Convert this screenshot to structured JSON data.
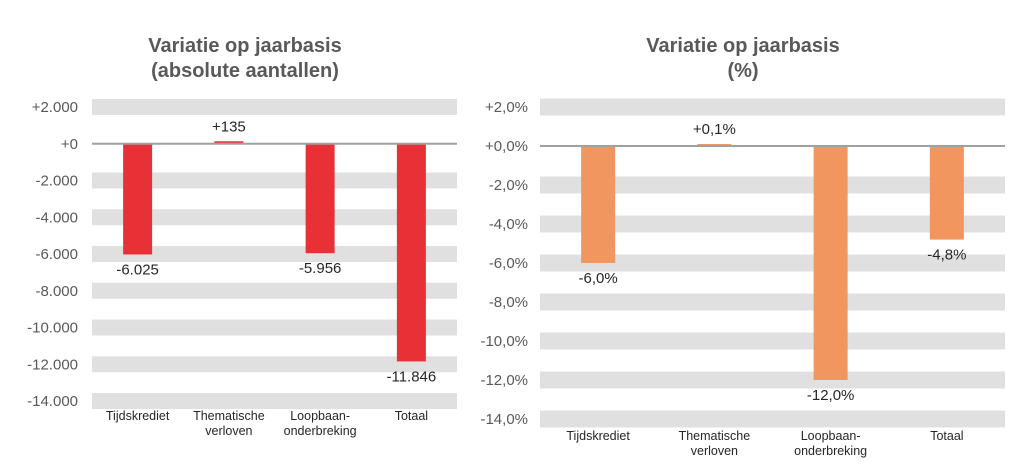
{
  "chart_data": [
    {
      "type": "bar",
      "title": [
        "Variatie op jaarbasis",
        "(absolute aantallen)"
      ],
      "categories": [
        [
          "Tijdskrediet"
        ],
        [
          "Thematische",
          "verloven"
        ],
        [
          "Loopbaan-",
          "onderbreking"
        ],
        [
          "Totaal"
        ]
      ],
      "values": [
        -6025,
        135,
        -5956,
        -11846
      ],
      "data_labels": [
        "-6.025",
        "+135",
        "-5.956",
        "-11.846"
      ],
      "ylim": [
        -14000,
        2000
      ],
      "yticks": [
        2000,
        0,
        -2000,
        -4000,
        -6000,
        -8000,
        -10000,
        -12000,
        -14000
      ],
      "ytick_labels": [
        "+2.000",
        "+0",
        "-2.000",
        "-4.000",
        "-6.000",
        "-8.000",
        "-10.000",
        "-12.000",
        "-14.000"
      ],
      "grid": "alternating bands",
      "color": "#E83137"
    },
    {
      "type": "bar",
      "title": [
        "Variatie op jaarbasis",
        "(%)"
      ],
      "categories": [
        [
          "Tijdskrediet"
        ],
        [
          "Thematische",
          "verloven"
        ],
        [
          "Loopbaan-",
          "onderbreking"
        ],
        [
          "Totaal"
        ]
      ],
      "values": [
        -6.0,
        0.1,
        -12.0,
        -4.8
      ],
      "data_labels": [
        "-6,0%",
        "+0,1%",
        "-12,0%",
        "-4,8%"
      ],
      "ylim": [
        -14,
        2
      ],
      "yticks": [
        2,
        0,
        -2,
        -4,
        -6,
        -8,
        -10,
        -12,
        -14
      ],
      "ytick_labels": [
        "+2,0%",
        "+0,0%",
        "-2,0%",
        "-4,0%",
        "-6,0%",
        "-8,0%",
        "-10,0%",
        "-12,0%",
        "-14,0%"
      ],
      "grid": "alternating bands",
      "color": "#F0965E"
    }
  ]
}
